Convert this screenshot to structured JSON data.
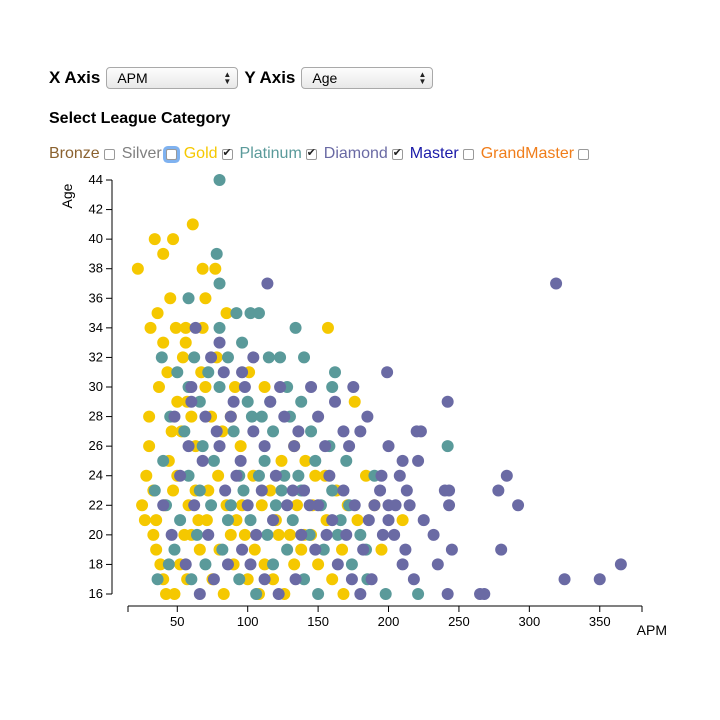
{
  "controls": {
    "x_axis_label": "X Axis",
    "x_axis_value": "APM",
    "y_axis_label": "Y Axis",
    "y_axis_value": "Age",
    "category_title": "Select League Category"
  },
  "legend": [
    {
      "name": "Bronze",
      "color": "#8b6230",
      "checked": false
    },
    {
      "name": "Silver",
      "color": "#808080",
      "checked": false,
      "focused": true
    },
    {
      "name": "Gold",
      "color": "#f5c800",
      "checked": true
    },
    {
      "name": "Platinum",
      "color": "#5a9a9a",
      "checked": true
    },
    {
      "name": "Diamond",
      "color": "#6a6aa4",
      "checked": true
    },
    {
      "name": "Master",
      "color": "#1a1aa8",
      "checked": false
    },
    {
      "name": "GrandMaster",
      "color": "#f07d1a",
      "checked": false
    }
  ],
  "chart_data": {
    "type": "scatter",
    "xlabel": "APM",
    "ylabel": "Age",
    "xlim": [
      15,
      380
    ],
    "ylim": [
      16,
      44
    ],
    "xticks": [
      50,
      100,
      150,
      200,
      250,
      300,
      350
    ],
    "yticks": [
      16,
      18,
      20,
      22,
      24,
      26,
      28,
      30,
      32,
      34,
      36,
      38,
      40,
      42,
      44
    ],
    "series": [
      {
        "name": "Gold",
        "color": "#f5c800",
        "points": [
          [
            22,
            38
          ],
          [
            34,
            40
          ],
          [
            40,
            39
          ],
          [
            47,
            40
          ],
          [
            61,
            41
          ],
          [
            68,
            38
          ],
          [
            77,
            38
          ],
          [
            70,
            36
          ],
          [
            45,
            36
          ],
          [
            36,
            35
          ],
          [
            31,
            34
          ],
          [
            49,
            34
          ],
          [
            56,
            34
          ],
          [
            68,
            34
          ],
          [
            85,
            35
          ],
          [
            157,
            34
          ],
          [
            40,
            33
          ],
          [
            54,
            32
          ],
          [
            67,
            31
          ],
          [
            78,
            32
          ],
          [
            91,
            30
          ],
          [
            101,
            31
          ],
          [
            112,
            30
          ],
          [
            88,
            28
          ],
          [
            57,
            29
          ],
          [
            46,
            27
          ],
          [
            30,
            26
          ],
          [
            28,
            24
          ],
          [
            25,
            22
          ],
          [
            27,
            21
          ],
          [
            33,
            20
          ],
          [
            35,
            19
          ],
          [
            38,
            18
          ],
          [
            40,
            17
          ],
          [
            42,
            16
          ],
          [
            48,
            16
          ],
          [
            52,
            18
          ],
          [
            57,
            17
          ],
          [
            60,
            20
          ],
          [
            65,
            21
          ],
          [
            72,
            23
          ],
          [
            79,
            24
          ],
          [
            85,
            22
          ],
          [
            92,
            21
          ],
          [
            98,
            20
          ],
          [
            105,
            19
          ],
          [
            112,
            18
          ],
          [
            118,
            17
          ],
          [
            126,
            16
          ],
          [
            133,
            18
          ],
          [
            140,
            20
          ],
          [
            146,
            22
          ],
          [
            155,
            24
          ],
          [
            163,
            23
          ],
          [
            171,
            22
          ],
          [
            178,
            21
          ],
          [
            184,
            24
          ],
          [
            190,
            22
          ],
          [
            195,
            19
          ],
          [
            210,
            21
          ],
          [
            176,
            29
          ],
          [
            30,
            28
          ],
          [
            33,
            23
          ],
          [
            44,
            25
          ],
          [
            53,
            27
          ],
          [
            63,
            26
          ],
          [
            74,
            28
          ],
          [
            82,
            27
          ],
          [
            95,
            26
          ],
          [
            104,
            24
          ],
          [
            116,
            23
          ],
          [
            124,
            25
          ],
          [
            133,
            26
          ],
          [
            141,
            25
          ],
          [
            148,
            24
          ],
          [
            37,
            30
          ],
          [
            43,
            31
          ],
          [
            50,
            29
          ],
          [
            60,
            28
          ],
          [
            70,
            30
          ],
          [
            56,
            33
          ],
          [
            50,
            24
          ],
          [
            58,
            22
          ],
          [
            66,
            19
          ],
          [
            75,
            17
          ],
          [
            83,
            16
          ],
          [
            90,
            18
          ],
          [
            100,
            17
          ],
          [
            108,
            16
          ],
          [
            120,
            21
          ],
          [
            130,
            20
          ],
          [
            138,
            19
          ],
          [
            150,
            18
          ],
          [
            160,
            17
          ],
          [
            168,
            16
          ],
          [
            35,
            21
          ],
          [
            41,
            22
          ],
          [
            47,
            23
          ],
          [
            55,
            20
          ],
          [
            63,
            23
          ],
          [
            71,
            21
          ],
          [
            80,
            19
          ],
          [
            88,
            20
          ],
          [
            96,
            22
          ],
          [
            110,
            22
          ],
          [
            122,
            20
          ],
          [
            135,
            22
          ],
          [
            145,
            20
          ],
          [
            156,
            21
          ],
          [
            167,
            19
          ]
        ]
      },
      {
        "name": "Platinum",
        "color": "#5a9a9a",
        "points": [
          [
            80,
            44
          ],
          [
            78,
            39
          ],
          [
            80,
            37
          ],
          [
            58,
            36
          ],
          [
            92,
            35
          ],
          [
            102,
            35
          ],
          [
            108,
            35
          ],
          [
            134,
            34
          ],
          [
            39,
            32
          ],
          [
            62,
            32
          ],
          [
            86,
            32
          ],
          [
            96,
            33
          ],
          [
            115,
            32
          ],
          [
            123,
            32
          ],
          [
            140,
            32
          ],
          [
            80,
            34
          ],
          [
            50,
            31
          ],
          [
            80,
            30
          ],
          [
            116,
            29
          ],
          [
            128,
            30
          ],
          [
            138,
            29
          ],
          [
            160,
            30
          ],
          [
            162,
            31
          ],
          [
            45,
            28
          ],
          [
            55,
            27
          ],
          [
            68,
            26
          ],
          [
            90,
            27
          ],
          [
            103,
            28
          ],
          [
            118,
            27
          ],
          [
            130,
            28
          ],
          [
            145,
            27
          ],
          [
            158,
            26
          ],
          [
            170,
            25
          ],
          [
            190,
            24
          ],
          [
            242,
            26
          ],
          [
            34,
            23
          ],
          [
            42,
            22
          ],
          [
            52,
            21
          ],
          [
            64,
            20
          ],
          [
            74,
            22
          ],
          [
            86,
            21
          ],
          [
            97,
            23
          ],
          [
            108,
            24
          ],
          [
            120,
            22
          ],
          [
            132,
            21
          ],
          [
            144,
            20
          ],
          [
            154,
            19
          ],
          [
            164,
            20
          ],
          [
            174,
            18
          ],
          [
            185,
            17
          ],
          [
            198,
            16
          ],
          [
            221,
            16
          ],
          [
            60,
            17
          ],
          [
            70,
            18
          ],
          [
            82,
            19
          ],
          [
            94,
            17
          ],
          [
            106,
            16
          ],
          [
            118,
            18
          ],
          [
            128,
            19
          ],
          [
            140,
            17
          ],
          [
            150,
            16
          ],
          [
            40,
            25
          ],
          [
            58,
            24
          ],
          [
            76,
            25
          ],
          [
            94,
            24
          ],
          [
            112,
            25
          ],
          [
            126,
            24
          ],
          [
            138,
            23
          ],
          [
            152,
            22
          ],
          [
            166,
            21
          ],
          [
            180,
            20
          ],
          [
            48,
            19
          ],
          [
            36,
            17
          ],
          [
            44,
            18
          ],
          [
            66,
            23
          ],
          [
            88,
            22
          ],
          [
            102,
            21
          ],
          [
            114,
            20
          ],
          [
            124,
            23
          ],
          [
            136,
            24
          ],
          [
            148,
            25
          ],
          [
            160,
            23
          ],
          [
            172,
            22
          ],
          [
            184,
            19
          ],
          [
            66,
            29
          ],
          [
            72,
            31
          ],
          [
            58,
            30
          ],
          [
            100,
            29
          ],
          [
            110,
            28
          ]
        ]
      },
      {
        "name": "Diamond",
        "color": "#6a6aa4",
        "points": [
          [
            114,
            37
          ],
          [
            319,
            37
          ],
          [
            63,
            34
          ],
          [
            74,
            32
          ],
          [
            83,
            31
          ],
          [
            98,
            30
          ],
          [
            123,
            30
          ],
          [
            145,
            30
          ],
          [
            175,
            30
          ],
          [
            199,
            31
          ],
          [
            242,
            29
          ],
          [
            70,
            28
          ],
          [
            90,
            29
          ],
          [
            104,
            27
          ],
          [
            126,
            28
          ],
          [
            150,
            28
          ],
          [
            168,
            27
          ],
          [
            185,
            28
          ],
          [
            220,
            27
          ],
          [
            223,
            27
          ],
          [
            200,
            26
          ],
          [
            210,
            25
          ],
          [
            80,
            26
          ],
          [
            95,
            25
          ],
          [
            112,
            26
          ],
          [
            133,
            26
          ],
          [
            155,
            26
          ],
          [
            172,
            26
          ],
          [
            195,
            24
          ],
          [
            208,
            24
          ],
          [
            221,
            25
          ],
          [
            284,
            24
          ],
          [
            278,
            23
          ],
          [
            240,
            23
          ],
          [
            243,
            23
          ],
          [
            213,
            23
          ],
          [
            215,
            22
          ],
          [
            292,
            22
          ],
          [
            243,
            22
          ],
          [
            200,
            22
          ],
          [
            205,
            22
          ],
          [
            190,
            22
          ],
          [
            225,
            21
          ],
          [
            232,
            20
          ],
          [
            200,
            21
          ],
          [
            245,
            19
          ],
          [
            280,
            19
          ],
          [
            235,
            18
          ],
          [
            365,
            18
          ],
          [
            325,
            17
          ],
          [
            350,
            17
          ],
          [
            242,
            16
          ],
          [
            265,
            16
          ],
          [
            268,
            16
          ],
          [
            210,
            18
          ],
          [
            218,
            17
          ],
          [
            188,
            17
          ],
          [
            196,
            20
          ],
          [
            182,
            19
          ],
          [
            170,
            20
          ],
          [
            160,
            21
          ],
          [
            150,
            22
          ],
          [
            140,
            23
          ],
          [
            128,
            22
          ],
          [
            118,
            21
          ],
          [
            106,
            20
          ],
          [
            96,
            19
          ],
          [
            86,
            18
          ],
          [
            76,
            17
          ],
          [
            66,
            16
          ],
          [
            56,
            18
          ],
          [
            46,
            20
          ],
          [
            40,
            22
          ],
          [
            52,
            24
          ],
          [
            62,
            22
          ],
          [
            72,
            20
          ],
          [
            84,
            23
          ],
          [
            92,
            24
          ],
          [
            100,
            22
          ],
          [
            110,
            23
          ],
          [
            120,
            24
          ],
          [
            132,
            23
          ],
          [
            144,
            22
          ],
          [
            156,
            20
          ],
          [
            164,
            18
          ],
          [
            174,
            17
          ],
          [
            180,
            16
          ],
          [
            134,
            17
          ],
          [
            122,
            16
          ],
          [
            112,
            17
          ],
          [
            102,
            18
          ],
          [
            138,
            20
          ],
          [
            148,
            19
          ],
          [
            158,
            24
          ],
          [
            168,
            23
          ],
          [
            176,
            22
          ],
          [
            186,
            21
          ],
          [
            194,
            23
          ],
          [
            204,
            20
          ],
          [
            212,
            19
          ],
          [
            58,
            26
          ],
          [
            68,
            25
          ],
          [
            48,
            28
          ],
          [
            60,
            29
          ],
          [
            78,
            27
          ],
          [
            88,
            28
          ],
          [
            116,
            29
          ],
          [
            136,
            27
          ],
          [
            162,
            29
          ],
          [
            180,
            27
          ],
          [
            60,
            30
          ],
          [
            80,
            33
          ],
          [
            96,
            31
          ],
          [
            104,
            32
          ]
        ]
      }
    ]
  }
}
